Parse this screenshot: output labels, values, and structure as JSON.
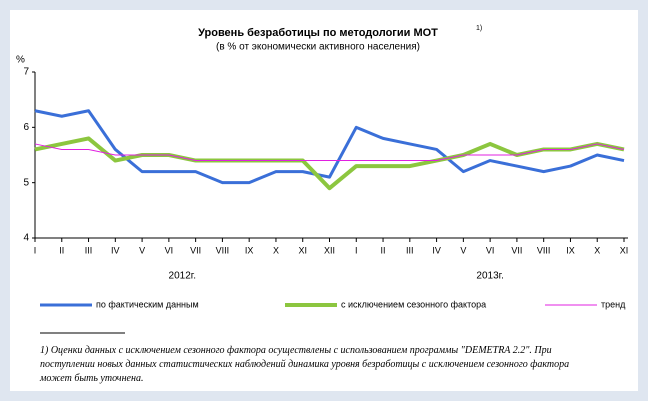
{
  "chart_data": {
    "type": "line",
    "title": "Уровень безработицы по методологии МОТ",
    "title_note": "1)",
    "subtitle": "(в % от экономически активного населения)",
    "y_label": "%",
    "categories": [
      "I",
      "II",
      "III",
      "IV",
      "V",
      "VI",
      "VII",
      "VIII",
      "IX",
      "X",
      "XI",
      "XII",
      "I",
      "II",
      "III",
      "IV",
      "V",
      "VI",
      "VII",
      "VIII",
      "IX",
      "X",
      "XI"
    ],
    "x_groups": [
      {
        "label": "2012г.",
        "count": 12
      },
      {
        "label": "2013г.",
        "count": 11
      }
    ],
    "ylim": [
      4,
      7
    ],
    "yticks": [
      4,
      5,
      6,
      7
    ],
    "grid": false,
    "series": [
      {
        "name": "по фактическим данным",
        "color": "#3a6fd8",
        "width": 3,
        "values": [
          6.3,
          6.2,
          6.3,
          5.6,
          5.2,
          5.2,
          5.2,
          5.0,
          5.0,
          5.2,
          5.2,
          5.1,
          6.0,
          5.8,
          5.7,
          5.6,
          5.2,
          5.4,
          5.3,
          5.2,
          5.3,
          5.5,
          5.4
        ]
      },
      {
        "name": "с исключением сезонного фактора",
        "color": "#8cc63f",
        "width": 4,
        "values": [
          5.6,
          5.7,
          5.8,
          5.4,
          5.5,
          5.5,
          5.4,
          5.4,
          5.4,
          5.4,
          5.4,
          4.9,
          5.3,
          5.3,
          5.3,
          5.4,
          5.5,
          5.7,
          5.5,
          5.6,
          5.6,
          5.7,
          5.6
        ]
      },
      {
        "name": "тренд",
        "color": "#e020e0",
        "width": 1,
        "values": [
          5.7,
          5.6,
          5.6,
          5.5,
          5.5,
          5.5,
          5.4,
          5.4,
          5.4,
          5.4,
          5.4,
          5.4,
          5.4,
          5.4,
          5.4,
          5.4,
          5.5,
          5.5,
          5.5,
          5.6,
          5.6,
          5.7,
          5.6
        ]
      }
    ],
    "footnote": "1) Оценки данных с исключением сезонного фактора осуществлены с использованием программы \"DEMETRA 2.2\". При поступлении новых данных статистических наблюдений динамика уровня безработицы с исключением сезонного фактора может быть уточнена."
  }
}
